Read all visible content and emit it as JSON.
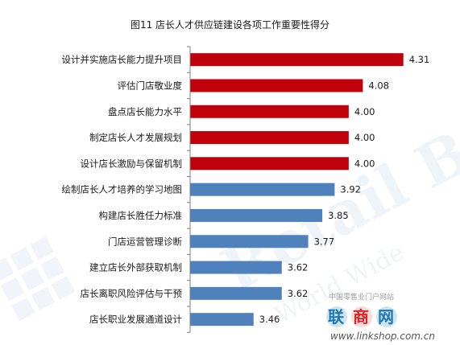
{
  "chart_data": {
    "type": "bar",
    "orientation": "horizontal",
    "title": "图11 店长人才供应链建设各项工作重要性得分",
    "categories": [
      "设计并实施店长能力提升项目",
      "评估门店敬业度",
      "盘点店长能力水平",
      "制定店长人才发展规划",
      "设计店长激励与保留机制",
      "绘制店长人才培养的学习地图",
      "构建店长胜任力标准",
      "门店运营管理诊断",
      "建立店长外部获取机制",
      "店长离职风险评估与干预",
      "店长职业发展通道设计"
    ],
    "values": [
      4.31,
      4.08,
      4.0,
      4.0,
      4.0,
      3.92,
      3.85,
      3.77,
      3.62,
      3.62,
      3.46
    ],
    "value_labels": [
      "4.31",
      "4.08",
      "4.00",
      "4.00",
      "4.00",
      "3.92",
      "3.85",
      "3.77",
      "3.62",
      "3.62",
      "3.46"
    ],
    "bar_colors": [
      "#c0000b",
      "#c0000b",
      "#c0000b",
      "#c0000b",
      "#c0000b",
      "#4f81bd",
      "#4f81bd",
      "#4f81bd",
      "#4f81bd",
      "#4f81bd",
      "#4f81bd"
    ],
    "xlim": [
      3.1,
      4.38
    ],
    "grid": false,
    "legend": "none"
  },
  "watermark": {
    "text": "Retail Base",
    "subtext": "World Wide",
    "site_name": "中国零售业门户网站",
    "logo": "联商网",
    "url": "www.linkshop.com.cn"
  }
}
